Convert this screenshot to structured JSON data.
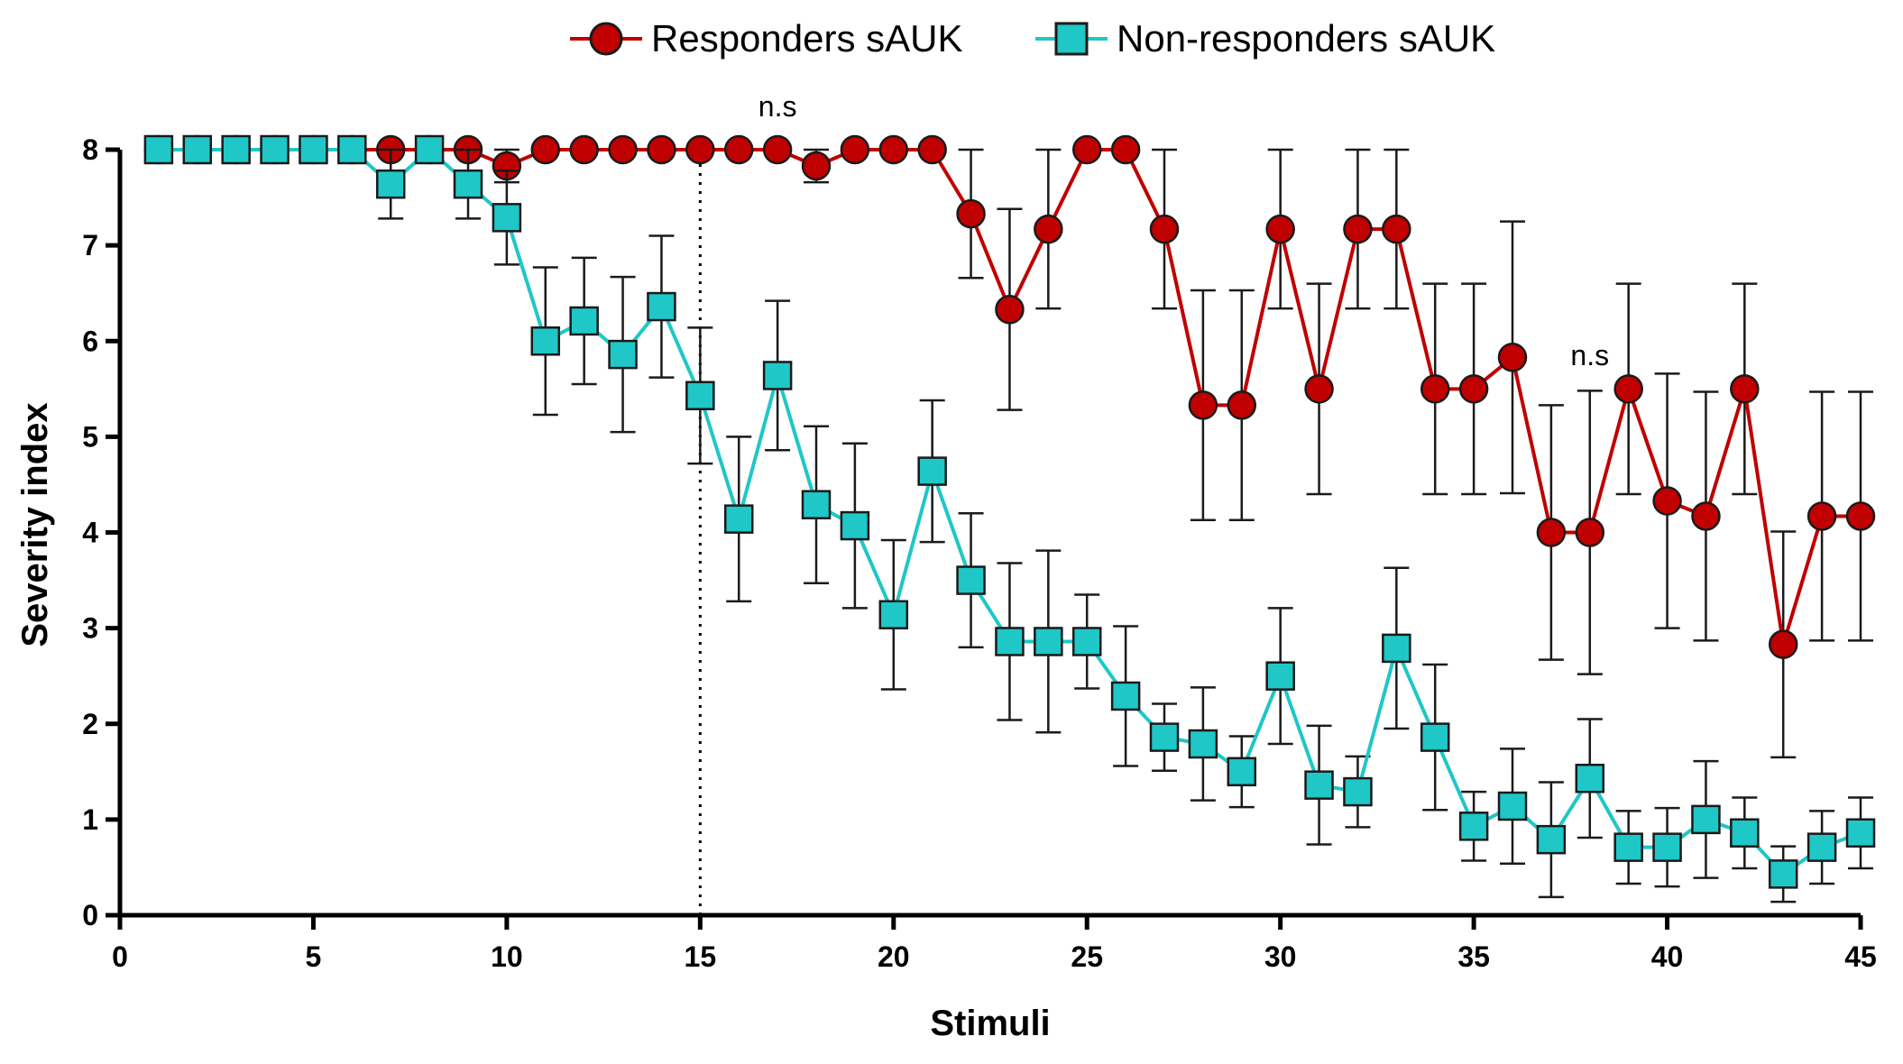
{
  "chart_data": {
    "type": "line",
    "title": "",
    "xlabel": "Stimuli",
    "ylabel": "Severity index",
    "xlim": [
      0,
      45
    ],
    "ylim": [
      0,
      8
    ],
    "xticks": [
      0,
      5,
      10,
      15,
      20,
      25,
      30,
      35,
      40,
      45
    ],
    "yticks": [
      0,
      1,
      2,
      3,
      4,
      5,
      6,
      7,
      8
    ],
    "reference_line": {
      "x": 15,
      "style": "dotted"
    },
    "annotations": [
      {
        "text": "n.s",
        "x": 17,
        "y": 8.35
      },
      {
        "text": "n.s",
        "x": 38,
        "y": 5.75
      }
    ],
    "legend": {
      "position": "top-center"
    },
    "series": [
      {
        "name": "Responders sAUK",
        "marker": "circle",
        "color": "#C00000",
        "x": [
          1,
          2,
          3,
          4,
          5,
          6,
          7,
          8,
          9,
          10,
          11,
          12,
          13,
          14,
          15,
          16,
          17,
          18,
          19,
          20,
          21,
          22,
          23,
          24,
          25,
          26,
          27,
          28,
          29,
          30,
          31,
          32,
          33,
          34,
          35,
          36,
          37,
          38,
          39,
          40,
          41,
          42,
          43,
          44,
          45
        ],
        "values": [
          8,
          8,
          8,
          8,
          8,
          8,
          8,
          8,
          8,
          7.83,
          8,
          8,
          8,
          8,
          8,
          8,
          8,
          7.83,
          8,
          8,
          8,
          7.33,
          6.33,
          7.17,
          8,
          8,
          7.17,
          5.33,
          5.33,
          7.17,
          5.5,
          7.17,
          7.17,
          5.5,
          5.5,
          5.83,
          4,
          4,
          5.5,
          4.33,
          4.17,
          5.5,
          2.83,
          4.17,
          4.17
        ],
        "errors": [
          0,
          0,
          0,
          0,
          0,
          0,
          0,
          0,
          0,
          0.17,
          0,
          0,
          0,
          0,
          0,
          0,
          0,
          0.17,
          0,
          0,
          0,
          0.67,
          1.05,
          0.83,
          0,
          0,
          0.83,
          1.2,
          1.2,
          0.83,
          1.1,
          0.83,
          0.83,
          1.1,
          1.1,
          1.42,
          1.33,
          1.48,
          1.1,
          1.33,
          1.3,
          1.1,
          1.18,
          1.3,
          1.3
        ]
      },
      {
        "name": "Non-responders sAUK",
        "marker": "square",
        "color": "#1FC7C7",
        "x": [
          1,
          2,
          3,
          4,
          5,
          6,
          7,
          8,
          9,
          10,
          11,
          12,
          13,
          14,
          15,
          16,
          17,
          18,
          19,
          20,
          21,
          22,
          23,
          24,
          25,
          26,
          27,
          28,
          29,
          30,
          31,
          32,
          33,
          34,
          35,
          36,
          37,
          38,
          39,
          40,
          41,
          42,
          43,
          44,
          45
        ],
        "values": [
          8,
          8,
          8,
          8,
          8,
          8,
          7.64,
          8,
          7.64,
          7.29,
          6,
          6.21,
          5.86,
          6.36,
          5.43,
          4.14,
          5.64,
          4.29,
          4.07,
          3.14,
          4.64,
          3.5,
          2.86,
          2.86,
          2.86,
          2.29,
          1.86,
          1.79,
          1.5,
          2.5,
          1.36,
          1.29,
          2.79,
          1.86,
          0.93,
          1.14,
          0.79,
          1.43,
          0.71,
          0.71,
          1,
          0.86,
          0.43,
          0.71,
          0.86
        ],
        "errors": [
          0,
          0,
          0,
          0,
          0,
          0,
          0.36,
          0,
          0.36,
          0.49,
          0.77,
          0.66,
          0.81,
          0.74,
          0.71,
          0.86,
          0.78,
          0.82,
          0.86,
          0.78,
          0.74,
          0.7,
          0.82,
          0.95,
          0.49,
          0.73,
          0.35,
          0.59,
          0.37,
          0.71,
          0.62,
          0.37,
          0.84,
          0.76,
          0.36,
          0.6,
          0.6,
          0.62,
          0.38,
          0.41,
          0.61,
          0.37,
          0.29,
          0.38,
          0.37
        ]
      }
    ]
  }
}
